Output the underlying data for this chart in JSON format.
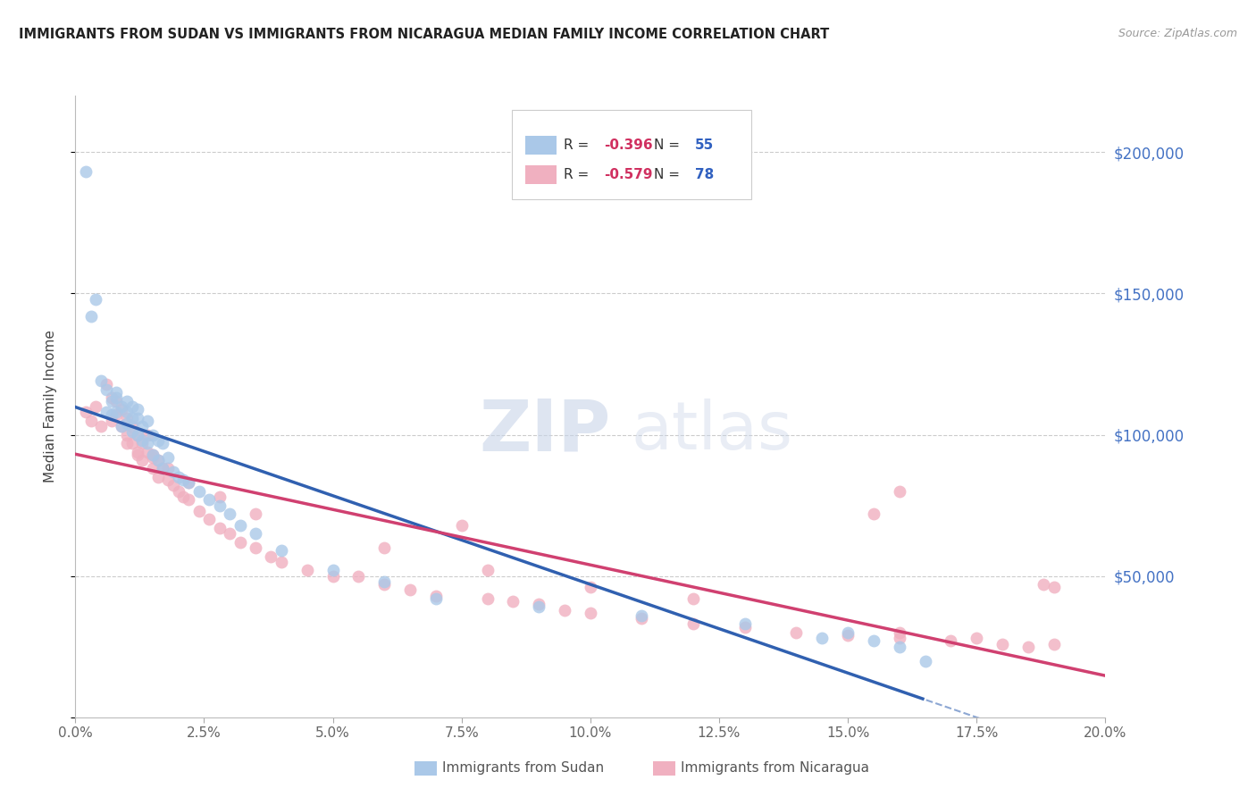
{
  "title": "IMMIGRANTS FROM SUDAN VS IMMIGRANTS FROM NICARAGUA MEDIAN FAMILY INCOME CORRELATION CHART",
  "source": "Source: ZipAtlas.com",
  "ylabel": "Median Family Income",
  "xlim": [
    0.0,
    0.2
  ],
  "ylim": [
    0,
    220000
  ],
  "ytick_vals": [
    0,
    50000,
    100000,
    150000,
    200000
  ],
  "ytick_labels": [
    "",
    "$50,000",
    "$100,000",
    "$150,000",
    "$200,000"
  ],
  "xtick_vals": [
    0.0,
    0.025,
    0.05,
    0.075,
    0.1,
    0.125,
    0.15,
    0.175,
    0.2
  ],
  "xtick_labels": [
    "0.0%",
    "2.5%",
    "5.0%",
    "7.5%",
    "10.0%",
    "12.5%",
    "15.0%",
    "17.5%",
    "20.0%"
  ],
  "sudan_color": "#aac8e8",
  "sudan_line_color": "#3060b0",
  "nicaragua_color": "#f0b0c0",
  "nicaragua_line_color": "#d04070",
  "legend_R_color": "#d03060",
  "legend_N_color": "#3060c0",
  "background_color": "#ffffff",
  "sudan_x": [
    0.002,
    0.003,
    0.004,
    0.005,
    0.006,
    0.006,
    0.007,
    0.007,
    0.008,
    0.008,
    0.008,
    0.009,
    0.009,
    0.01,
    0.01,
    0.01,
    0.011,
    0.011,
    0.011,
    0.012,
    0.012,
    0.012,
    0.013,
    0.013,
    0.014,
    0.014,
    0.015,
    0.015,
    0.016,
    0.016,
    0.017,
    0.017,
    0.018,
    0.019,
    0.02,
    0.021,
    0.022,
    0.024,
    0.026,
    0.028,
    0.03,
    0.032,
    0.035,
    0.04,
    0.05,
    0.06,
    0.07,
    0.09,
    0.11,
    0.13,
    0.145,
    0.15,
    0.155,
    0.16,
    0.165
  ],
  "sudan_y": [
    193000,
    142000,
    148000,
    119000,
    116000,
    108000,
    112000,
    107000,
    115000,
    113000,
    108000,
    110000,
    103000,
    112000,
    108000,
    104000,
    110000,
    106000,
    101000,
    109000,
    106000,
    100000,
    103000,
    98000,
    105000,
    97000,
    100000,
    93000,
    98000,
    91000,
    97000,
    88000,
    92000,
    87000,
    85000,
    84000,
    83000,
    80000,
    77000,
    75000,
    72000,
    68000,
    65000,
    59000,
    52000,
    48000,
    42000,
    39000,
    36000,
    33000,
    28000,
    30000,
    27000,
    25000,
    20000
  ],
  "nicaragua_x": [
    0.002,
    0.003,
    0.004,
    0.005,
    0.006,
    0.007,
    0.007,
    0.008,
    0.008,
    0.009,
    0.009,
    0.01,
    0.01,
    0.011,
    0.011,
    0.012,
    0.012,
    0.013,
    0.013,
    0.014,
    0.014,
    0.015,
    0.015,
    0.016,
    0.016,
    0.017,
    0.018,
    0.019,
    0.02,
    0.021,
    0.022,
    0.024,
    0.026,
    0.028,
    0.03,
    0.032,
    0.035,
    0.038,
    0.04,
    0.045,
    0.05,
    0.055,
    0.06,
    0.065,
    0.07,
    0.075,
    0.08,
    0.085,
    0.09,
    0.095,
    0.1,
    0.11,
    0.12,
    0.13,
    0.14,
    0.15,
    0.16,
    0.17,
    0.18,
    0.185,
    0.19,
    0.01,
    0.012,
    0.015,
    0.018,
    0.022,
    0.028,
    0.035,
    0.06,
    0.08,
    0.1,
    0.12,
    0.16,
    0.175,
    0.188,
    0.19,
    0.155,
    0.16
  ],
  "nicaragua_y": [
    108000,
    105000,
    110000,
    103000,
    118000,
    113000,
    105000,
    112000,
    107000,
    109000,
    103000,
    106000,
    100000,
    103000,
    97000,
    100000,
    93000,
    97000,
    91000,
    100000,
    94000,
    93000,
    88000,
    91000,
    85000,
    88000,
    84000,
    82000,
    80000,
    78000,
    77000,
    73000,
    70000,
    67000,
    65000,
    62000,
    60000,
    57000,
    55000,
    52000,
    50000,
    50000,
    47000,
    45000,
    43000,
    68000,
    42000,
    41000,
    40000,
    38000,
    37000,
    35000,
    33000,
    32000,
    30000,
    29000,
    28000,
    27000,
    26000,
    25000,
    46000,
    97000,
    94000,
    92000,
    88000,
    83000,
    78000,
    72000,
    60000,
    52000,
    46000,
    42000,
    30000,
    28000,
    47000,
    26000,
    72000,
    80000
  ]
}
